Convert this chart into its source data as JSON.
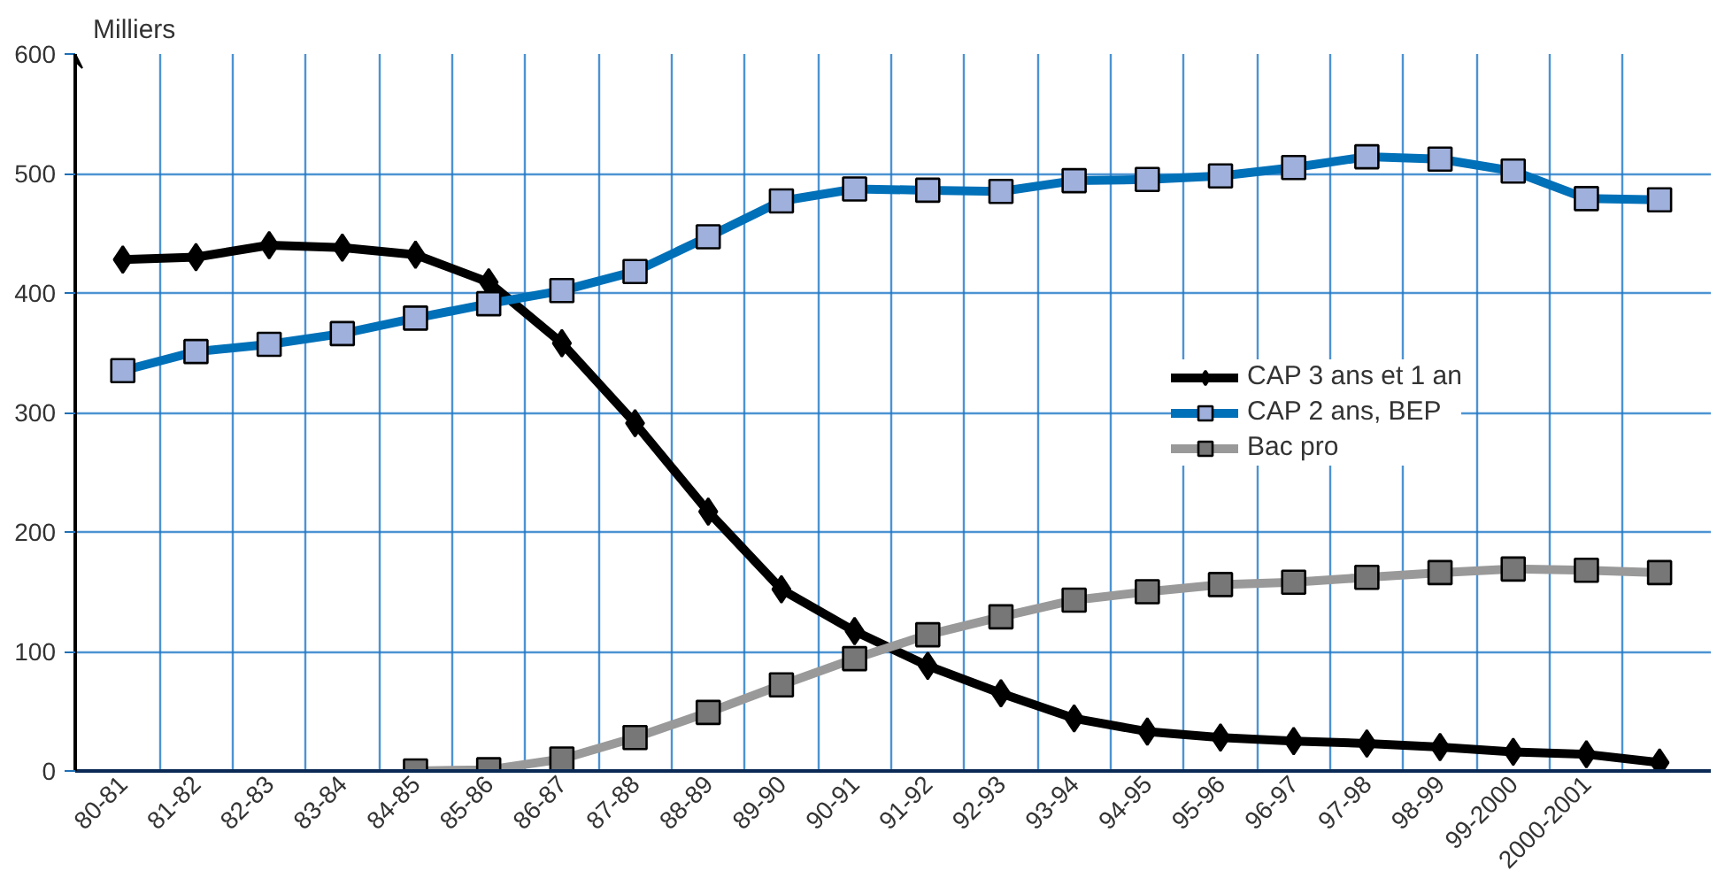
{
  "chart_data": {
    "type": "line",
    "ylabel": "Milliers",
    "categories": [
      "80-81",
      "81-82",
      "82-83",
      "83-84",
      "84-85",
      "85-86",
      "86-87",
      "87-88",
      "88-89",
      "89-90",
      "90-91",
      "91-92",
      "92-93",
      "93-94",
      "94-95",
      "95-96",
      "96-97",
      "97-98",
      "98-99",
      "99-2000",
      "2000-2001",
      null
    ],
    "series": [
      {
        "name": "CAP 3 ans et 1 an",
        "color": "#000000",
        "marker": "diamond",
        "values": [
          428,
          430,
          440,
          438,
          432,
          409,
          358,
          291,
          217,
          152,
          117,
          88,
          65,
          44,
          33,
          28,
          25,
          23,
          20,
          16,
          14,
          7
        ]
      },
      {
        "name": "CAP 2 ans, BEP",
        "color": "#0070b8",
        "marker": "square",
        "values": [
          335,
          351,
          357,
          366,
          379,
          391,
          402,
          418,
          447,
          477,
          487,
          486,
          485,
          494,
          495,
          498,
          505,
          514,
          512,
          502,
          479,
          478
        ]
      },
      {
        "name": "Bac pro",
        "color": "#999999",
        "marker": "square",
        "values": [
          null,
          null,
          null,
          null,
          0,
          1,
          10,
          28,
          49,
          72,
          94,
          114,
          129,
          143,
          150,
          156,
          158,
          162,
          166,
          169,
          168,
          166
        ]
      }
    ],
    "ylim": [
      0,
      600
    ],
    "yticks": [
      0,
      100,
      200,
      300,
      400,
      500,
      600
    ],
    "grid": true,
    "legend": "right",
    "line_style": "solid"
  }
}
